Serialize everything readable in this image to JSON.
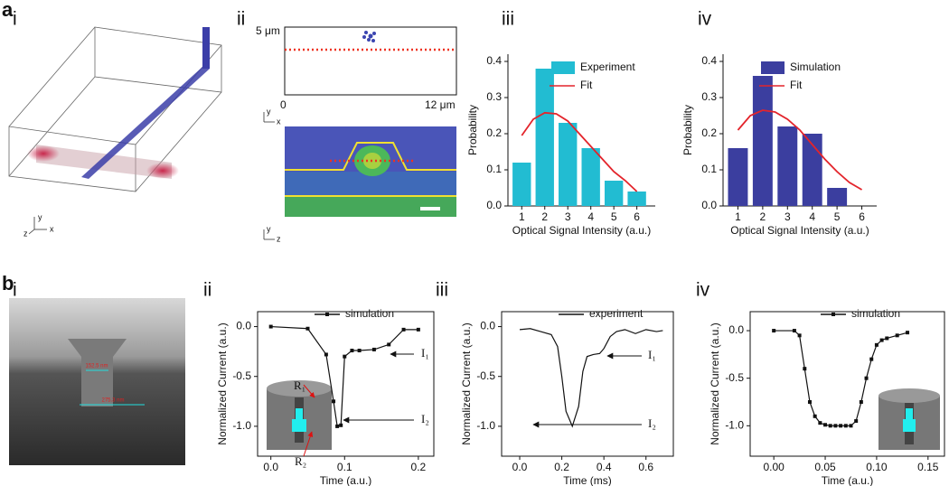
{
  "figure": {
    "panel_labels": [
      "a",
      "i",
      "ii",
      "iii",
      "iv",
      "b",
      "i",
      "ii",
      "iii",
      "iv"
    ],
    "a_ii": {
      "y_max": "5 μm",
      "x_min": "0",
      "x_max": "12 μm"
    },
    "axis_letters": [
      "y",
      "x",
      "z",
      "y",
      "x",
      "y",
      "z"
    ],
    "sem_labels": [
      "152.5 nm",
      "275.3 nm"
    ]
  },
  "chart_data": [
    {
      "type": "bar",
      "xlabel": "Optical Signal Intensity (a.u.)",
      "ylabel": "Probability",
      "xlim": [
        0.4,
        6.8
      ],
      "xticks": [
        1,
        2,
        3,
        4,
        5,
        6
      ],
      "ylim": [
        0,
        0.42
      ],
      "yticks": [
        {
          "value": 0,
          "label": "0.0"
        },
        0.1,
        0.2,
        0.3,
        0.4
      ],
      "series": [
        {
          "name": "Experiment",
          "color": "#22bcd2",
          "x": [
            1,
            2,
            3,
            4,
            5,
            6
          ],
          "values": [
            0.12,
            0.38,
            0.23,
            0.16,
            0.07,
            0.04
          ]
        },
        {
          "name": "Fit",
          "type": "line",
          "color": "#e3242b",
          "x": [
            1,
            1.5,
            2,
            2.5,
            3,
            3.5,
            4,
            4.5,
            5,
            5.5,
            6
          ],
          "values": [
            0.195,
            0.24,
            0.258,
            0.255,
            0.235,
            0.2,
            0.165,
            0.13,
            0.095,
            0.07,
            0.04
          ]
        }
      ]
    },
    {
      "type": "bar",
      "xlabel": "Optical Signal Intensity (a.u.)",
      "ylabel": "Probability",
      "xlim": [
        0.4,
        6.6
      ],
      "xticks": [
        1,
        2,
        3,
        4,
        5,
        6
      ],
      "ylim": [
        0,
        0.42
      ],
      "yticks": [
        {
          "value": 0,
          "label": "0.0"
        },
        0.1,
        0.2,
        0.3,
        0.4
      ],
      "series": [
        {
          "name": "Simulation",
          "color": "#3b3e9f",
          "x": [
            1,
            2,
            3,
            4,
            5,
            6
          ],
          "values": [
            0.16,
            0.36,
            0.22,
            0.2,
            0.05,
            null
          ]
        },
        {
          "name": "Fit",
          "type": "line",
          "color": "#e3242b",
          "x": [
            1,
            1.5,
            2,
            2.5,
            3,
            3.5,
            4,
            4.5,
            5,
            5.5,
            6
          ],
          "values": [
            0.21,
            0.25,
            0.265,
            0.26,
            0.24,
            0.21,
            0.17,
            0.13,
            0.095,
            0.065,
            0.045
          ]
        }
      ]
    },
    {
      "type": "line",
      "markers": true,
      "xlabel": "Time (a.u.)",
      "ylabel": "Normalized Current (a.u.)",
      "xlim": [
        -0.018,
        0.221
      ],
      "xticks": [
        {
          "value": 0,
          "label": "0.0"
        },
        0.1,
        0.2
      ],
      "ylim": [
        -1.3,
        0.15
      ],
      "yticks": [
        {
          "value": -1,
          "label": "-1.0"
        },
        -0.5,
        {
          "value": 0,
          "label": "0.0"
        }
      ],
      "annotations": [
        "I₁",
        "I₂",
        "R₁",
        "R₂"
      ],
      "series": [
        {
          "name": "simulation",
          "color": "#111111",
          "x": [
            0,
            0.05,
            0.075,
            0.085,
            0.09,
            0.095,
            0.1,
            0.11,
            0.12,
            0.14,
            0.16,
            0.18,
            0.2
          ],
          "values": [
            0,
            -0.02,
            -0.28,
            -0.75,
            -1.0,
            -0.99,
            -0.3,
            -0.24,
            -0.24,
            -0.23,
            -0.18,
            -0.03,
            -0.03
          ]
        }
      ]
    },
    {
      "type": "line",
      "xlabel": "Time (ms)",
      "ylabel": "Normalized Current (a.u.)",
      "xlim": [
        -0.086,
        0.73
      ],
      "xticks": [
        {
          "value": 0,
          "label": "0.0"
        },
        0.2,
        0.4,
        0.6
      ],
      "ylim": [
        -1.3,
        0.15
      ],
      "yticks": [
        {
          "value": -1,
          "label": "-1.0"
        },
        -0.5,
        {
          "value": 0,
          "label": "0.0"
        }
      ],
      "annotations": [
        "I₁",
        "I₂"
      ],
      "series": [
        {
          "name": "experiment",
          "color": "#111111",
          "x": [
            0,
            0.05,
            0.1,
            0.15,
            0.18,
            0.2,
            0.22,
            0.25,
            0.28,
            0.3,
            0.32,
            0.35,
            0.38,
            0.4,
            0.43,
            0.46,
            0.5,
            0.55,
            0.6,
            0.65,
            0.68
          ],
          "values": [
            -0.03,
            -0.02,
            -0.05,
            -0.08,
            -0.2,
            -0.5,
            -0.85,
            -1.0,
            -0.8,
            -0.45,
            -0.3,
            -0.28,
            -0.27,
            -0.22,
            -0.1,
            -0.05,
            -0.03,
            -0.07,
            -0.03,
            -0.05,
            -0.04
          ]
        }
      ]
    },
    {
      "type": "line",
      "markers": true,
      "xlabel": "Time (a.u.)",
      "ylabel": "Normalized Current (a.u.)",
      "xlim": [
        -0.023,
        0.166
      ],
      "xticks": [
        {
          "value": 0,
          "label": "0.00"
        },
        0.05,
        {
          "value": 0.1,
          "label": "0.10"
        },
        0.15
      ],
      "ylim": [
        -1.32,
        0.2
      ],
      "yticks": [
        {
          "value": -1,
          "label": "-1.0"
        },
        -0.5,
        {
          "value": 0,
          "label": "0.0"
        }
      ],
      "series": [
        {
          "name": "simulation",
          "color": "#111111",
          "x": [
            0,
            0.02,
            0.025,
            0.03,
            0.035,
            0.04,
            0.045,
            0.05,
            0.055,
            0.06,
            0.065,
            0.07,
            0.075,
            0.08,
            0.085,
            0.09,
            0.095,
            0.1,
            0.105,
            0.11,
            0.12,
            0.13
          ],
          "values": [
            0,
            0,
            -0.05,
            -0.4,
            -0.75,
            -0.9,
            -0.97,
            -0.99,
            -1,
            -1,
            -1,
            -1,
            -1,
            -0.95,
            -0.75,
            -0.5,
            -0.3,
            -0.15,
            -0.1,
            -0.08,
            -0.05,
            -0.02
          ]
        }
      ]
    }
  ]
}
